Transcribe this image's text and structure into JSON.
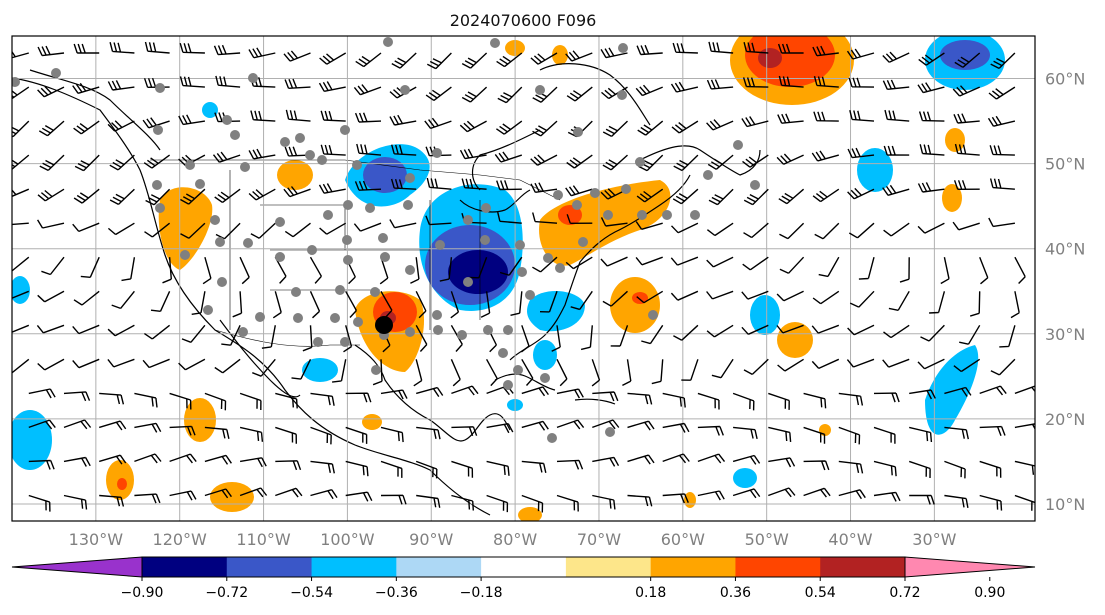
{
  "title": "2024070600 F096",
  "map": {
    "lon_range": [
      -140,
      -18
    ],
    "lat_range": [
      8,
      65
    ],
    "lon_labels": [
      "130°W",
      "120°W",
      "110°W",
      "100°W",
      "90°W",
      "80°W",
      "70°W",
      "60°W",
      "50°W",
      "40°W",
      "30°W"
    ],
    "lat_labels": [
      "60°N",
      "50°N",
      "40°N",
      "30°N",
      "20°N",
      "10°N"
    ],
    "grid": true,
    "colors": {
      "land_outline": "#000000",
      "grid": "#b0b0b0",
      "station_dot": "#808080",
      "highlight_dot": "#000000"
    }
  },
  "colorbar": {
    "ticks": [
      "−0.90",
      "−0.72",
      "−0.54",
      "−0.36",
      "−0.18",
      "0.18",
      "0.36",
      "0.54",
      "0.72",
      "0.90"
    ],
    "colors": [
      "#9932cc",
      "#000080",
      "#3a57c8",
      "#00bfff",
      "#add8f5",
      "#ffffff",
      "#fde68a",
      "#ffa500",
      "#ff4500",
      "#b22222",
      "#ff88b0"
    ],
    "extend": "both"
  }
}
